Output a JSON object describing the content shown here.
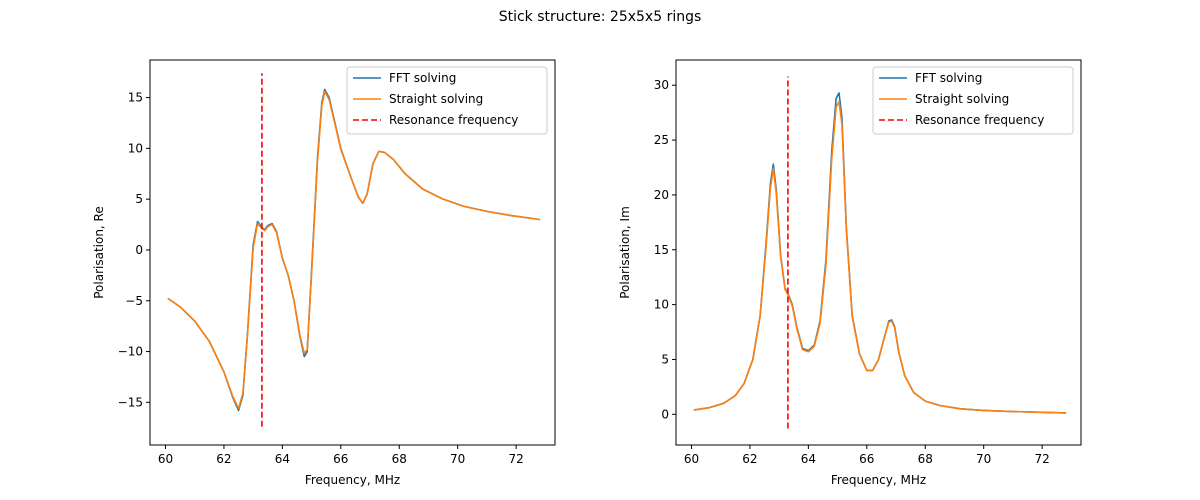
{
  "figure": {
    "title": "Stick structure: 25x5x5 rings",
    "background": "#ffffff"
  },
  "legend_entries": [
    {
      "label": "FFT solving",
      "color": "#1f77b4",
      "style": "solid"
    },
    {
      "label": "Straight solving",
      "color": "#ff7f0e",
      "style": "solid"
    },
    {
      "label": "Resonance frequency",
      "color": "#ff0000",
      "style": "dashed"
    }
  ],
  "chart_data": [
    {
      "type": "line",
      "title": "",
      "xlabel": "Frequency, MHz",
      "ylabel": "Polarisation, Re",
      "xlim": [
        59.47,
        73.33
      ],
      "ylim": [
        -19.2,
        18.7
      ],
      "xticks": [
        60,
        62,
        64,
        66,
        68,
        70,
        72
      ],
      "yticks": [
        -15,
        -10,
        -5,
        0,
        5,
        10,
        15
      ],
      "grid": false,
      "legend_position": "upper right",
      "resonance": {
        "x": 63.3,
        "y_range": [
          -17.4,
          17.4
        ]
      },
      "series": [
        {
          "name": "FFT solving",
          "color": "#1f77b4",
          "x": [
            60.1,
            60.5,
            61.0,
            61.5,
            62.0,
            62.3,
            62.5,
            62.65,
            62.8,
            63.0,
            63.15,
            63.3,
            63.4,
            63.5,
            63.65,
            63.8,
            64.0,
            64.2,
            64.4,
            64.6,
            64.75,
            64.85,
            65.0,
            65.2,
            65.35,
            65.45,
            65.6,
            65.8,
            66.0,
            66.3,
            66.6,
            66.75,
            66.9,
            67.1,
            67.3,
            67.5,
            67.8,
            68.2,
            68.8,
            69.5,
            70.2,
            71.0,
            71.8,
            72.8
          ],
          "y": [
            -4.8,
            -5.6,
            -7.0,
            -9.0,
            -12.0,
            -14.5,
            -15.8,
            -14.3,
            -8.5,
            0.5,
            2.8,
            2.2,
            2.0,
            2.4,
            2.6,
            1.8,
            -0.8,
            -2.5,
            -5.0,
            -8.5,
            -10.5,
            -10.0,
            -2.0,
            9.0,
            14.5,
            15.8,
            15.0,
            12.5,
            10.0,
            7.5,
            5.2,
            4.6,
            5.5,
            8.5,
            9.7,
            9.6,
            8.9,
            7.5,
            6.0,
            5.0,
            4.3,
            3.8,
            3.4,
            3.0
          ]
        },
        {
          "name": "Straight solving",
          "color": "#ff7f0e",
          "x": [
            60.1,
            60.5,
            61.0,
            61.5,
            62.0,
            62.3,
            62.5,
            62.65,
            62.8,
            63.0,
            63.15,
            63.3,
            63.4,
            63.5,
            63.65,
            63.8,
            64.0,
            64.2,
            64.4,
            64.6,
            64.75,
            64.85,
            65.0,
            65.2,
            65.35,
            65.45,
            65.6,
            65.8,
            66.0,
            66.3,
            66.6,
            66.75,
            66.9,
            67.1,
            67.3,
            67.5,
            67.8,
            68.2,
            68.8,
            69.5,
            70.2,
            71.0,
            71.8,
            72.8
          ],
          "y": [
            -4.8,
            -5.6,
            -7.0,
            -9.0,
            -12.0,
            -14.4,
            -15.6,
            -14.1,
            -8.6,
            0.2,
            2.6,
            2.1,
            1.9,
            2.3,
            2.5,
            1.7,
            -0.8,
            -2.5,
            -5.0,
            -8.4,
            -10.2,
            -9.8,
            -2.3,
            8.7,
            14.2,
            15.6,
            14.8,
            12.4,
            9.9,
            7.5,
            5.2,
            4.6,
            5.5,
            8.5,
            9.7,
            9.6,
            8.9,
            7.5,
            6.0,
            5.0,
            4.3,
            3.8,
            3.4,
            3.0
          ]
        }
      ]
    },
    {
      "type": "line",
      "title": "",
      "xlabel": "Frequency, MHz",
      "ylabel": "Polarisation, Im",
      "xlim": [
        59.47,
        73.33
      ],
      "ylim": [
        -2.8,
        32.3
      ],
      "xticks": [
        60,
        62,
        64,
        66,
        68,
        70,
        72
      ],
      "yticks": [
        0,
        5,
        10,
        15,
        20,
        25,
        30
      ],
      "grid": false,
      "legend_position": "upper right",
      "resonance": {
        "x": 63.3,
        "y_range": [
          -1.3,
          30.8
        ]
      },
      "series": [
        {
          "name": "FFT solving",
          "color": "#1f77b4",
          "x": [
            60.1,
            60.6,
            61.1,
            61.5,
            61.8,
            62.1,
            62.35,
            62.55,
            62.7,
            62.8,
            62.9,
            63.05,
            63.2,
            63.3,
            63.45,
            63.6,
            63.8,
            64.0,
            64.2,
            64.4,
            64.6,
            64.8,
            64.95,
            65.05,
            65.15,
            65.3,
            65.5,
            65.75,
            66.0,
            66.2,
            66.4,
            66.6,
            66.75,
            66.85,
            66.95,
            67.1,
            67.3,
            67.6,
            68.0,
            68.5,
            69.2,
            70.0,
            71.0,
            72.0,
            72.8
          ],
          "y": [
            0.4,
            0.6,
            1.0,
            1.7,
            2.8,
            5.0,
            9.0,
            15.5,
            21.0,
            22.8,
            20.5,
            14.5,
            11.5,
            11.0,
            10.0,
            8.0,
            6.0,
            5.8,
            6.3,
            8.5,
            14.0,
            24.0,
            28.8,
            29.3,
            27.0,
            17.0,
            9.0,
            5.5,
            4.0,
            4.0,
            5.0,
            7.0,
            8.5,
            8.6,
            8.0,
            5.6,
            3.5,
            2.0,
            1.2,
            0.8,
            0.5,
            0.35,
            0.25,
            0.18,
            0.12
          ]
        },
        {
          "name": "Straight solving",
          "color": "#ff7f0e",
          "x": [
            60.1,
            60.6,
            61.1,
            61.5,
            61.8,
            62.1,
            62.35,
            62.55,
            62.7,
            62.8,
            62.9,
            63.05,
            63.2,
            63.3,
            63.45,
            63.6,
            63.8,
            64.0,
            64.2,
            64.4,
            64.6,
            64.8,
            64.95,
            65.05,
            65.15,
            65.3,
            65.5,
            65.75,
            66.0,
            66.2,
            66.4,
            66.6,
            66.75,
            66.85,
            66.95,
            67.1,
            67.3,
            67.6,
            68.0,
            68.5,
            69.2,
            70.0,
            71.0,
            72.0,
            72.8
          ],
          "y": [
            0.4,
            0.6,
            1.0,
            1.7,
            2.8,
            5.0,
            9.0,
            15.2,
            20.6,
            22.4,
            20.2,
            14.4,
            11.4,
            10.9,
            9.9,
            7.9,
            5.9,
            5.7,
            6.2,
            8.3,
            13.6,
            23.3,
            28.0,
            28.5,
            26.4,
            16.8,
            8.9,
            5.5,
            4.0,
            4.0,
            5.0,
            7.0,
            8.4,
            8.5,
            7.9,
            5.6,
            3.5,
            2.0,
            1.2,
            0.8,
            0.5,
            0.35,
            0.25,
            0.18,
            0.12
          ]
        }
      ]
    }
  ]
}
